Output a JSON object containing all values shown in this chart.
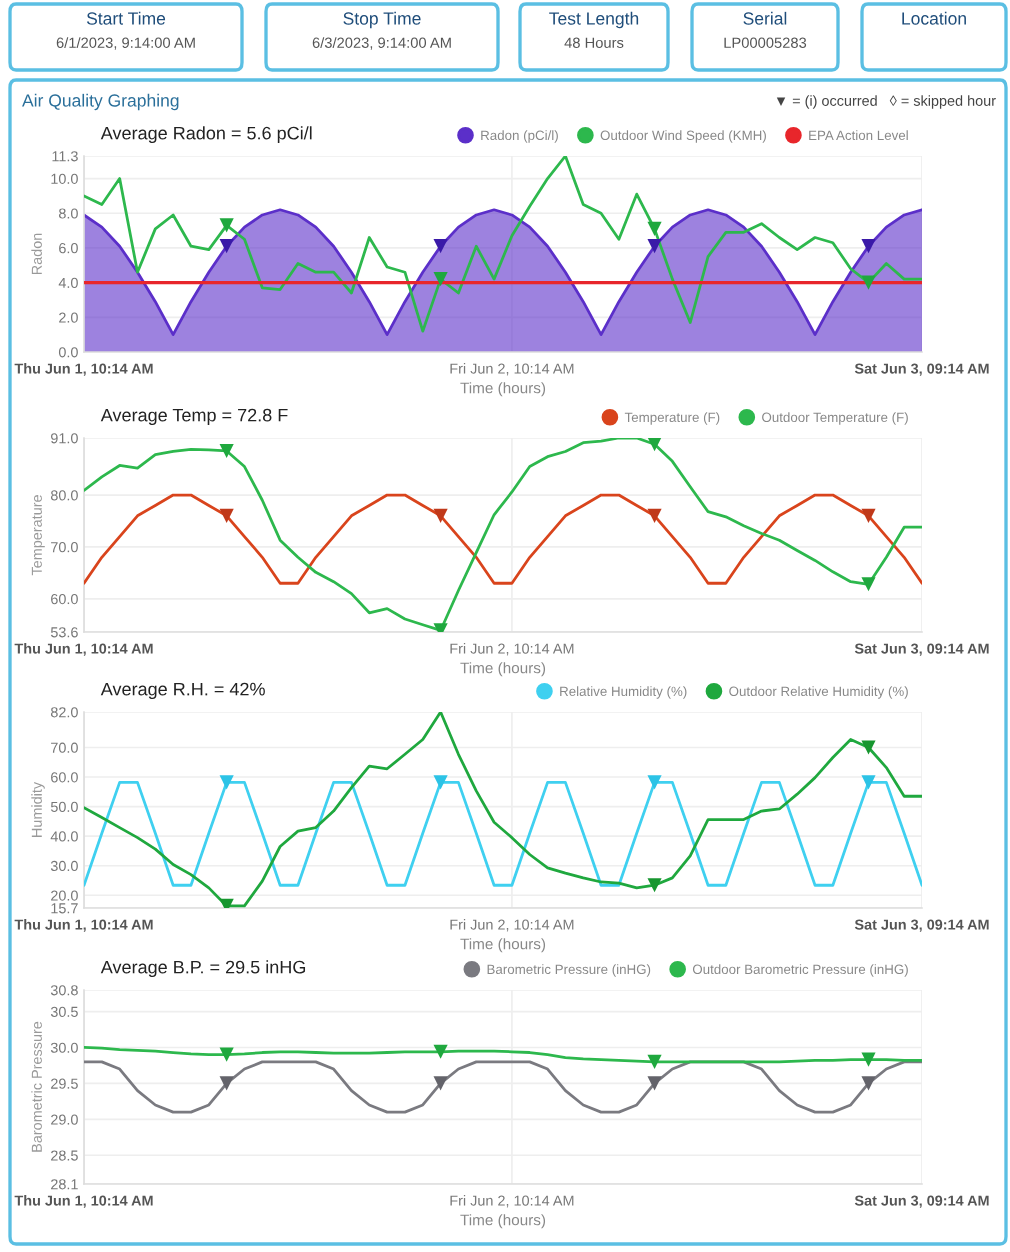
{
  "chart_data": [
    {
      "type": "other",
      "annotations": [
        "Start Time",
        "6/1/2023, 9:14:00 AM",
        "Stop Time",
        "6/3/2023, 9:14:00 AM",
        "Test Length",
        "48 Hours",
        "Serial",
        "LP00005283",
        "Location",
        "Air Quality Graphing"
      ]
    },
    {
      "type": "line",
      "title": "Average Radon = 5.6 pCi/l",
      "xlabel": "Time (hours)",
      "ylabel": "Radon",
      "annotations": [
        "▼ = (i) occurred   ◊ = skipped hour"
      ],
      "categories": [
        "Thu Jun 1, 10:14 AM",
        null,
        null,
        null,
        null,
        null,
        null,
        null,
        null,
        null,
        null,
        null,
        null,
        null,
        null,
        null,
        null,
        null,
        null,
        null,
        null,
        null,
        null,
        null,
        "Fri Jun 2, 10:14 AM",
        null,
        null,
        null,
        null,
        null,
        null,
        null,
        null,
        null,
        null,
        null,
        null,
        null,
        null,
        null,
        null,
        null,
        null,
        null,
        null,
        null,
        null,
        "Sat Jun 3, 09:14 AM"
      ],
      "ylim": [
        0,
        11.3
      ],
      "yticks": [
        {
          "value": 0,
          "label": "0.0"
        },
        {
          "value": 2,
          "label": "2.0"
        },
        {
          "value": 4,
          "label": "4.0"
        },
        {
          "value": 6,
          "label": "6.0"
        },
        {
          "value": 8,
          "label": "8.0"
        },
        {
          "value": 10,
          "label": "10.0"
        },
        11.3
      ],
      "grid": true,
      "legend": "top right",
      "ref_lines": [
        {
          "axis": "y",
          "value": 4.0,
          "label": "EPA Action Level",
          "color": "#e8262b"
        }
      ],
      "series": [
        {
          "name": "Radon (pCi/l)",
          "type": "area",
          "color": "#5b2fc9",
          "values": [
            7.9,
            7.2,
            6.1,
            4.6,
            2.9,
            1.0,
            2.9,
            4.6,
            6.1,
            7.2,
            7.9,
            8.2,
            7.9,
            7.2,
            6.1,
            4.6,
            2.9,
            1.0,
            2.9,
            4.6,
            6.1,
            7.2,
            7.9,
            8.2,
            7.9,
            7.2,
            6.1,
            4.6,
            2.9,
            1.0,
            2.9,
            4.6,
            6.1,
            7.2,
            7.9,
            8.2,
            7.9,
            7.2,
            6.1,
            4.6,
            2.9,
            1.0,
            2.9,
            4.6,
            6.1,
            7.2,
            7.9,
            8.2
          ]
        },
        {
          "name": "Outdoor Wind Speed (KMH)",
          "type": "line",
          "color": "#2db84d",
          "values": [
            9.0,
            8.5,
            10.0,
            4.6,
            7.1,
            7.9,
            6.1,
            5.9,
            7.3,
            6.5,
            3.7,
            3.6,
            5.1,
            4.6,
            4.6,
            3.4,
            6.6,
            4.9,
            4.6,
            1.2,
            4.2,
            3.4,
            6.1,
            4.2,
            6.7,
            8.4,
            10.0,
            11.3,
            8.5,
            8.0,
            6.5,
            9.1,
            7.1,
            4.2,
            1.7,
            5.5,
            6.9,
            6.9,
            7.4,
            6.6,
            5.9,
            6.6,
            6.3,
            4.8,
            4.0,
            5.1,
            4.2,
            4.2
          ]
        },
        {
          "type": "scatter",
          "marker": "triangle",
          "color": "#3a1aa8",
          "values": [
            null,
            null,
            null,
            null,
            null,
            null,
            null,
            null,
            6.1,
            null,
            null,
            null,
            null,
            null,
            null,
            null,
            null,
            null,
            null,
            null,
            6.1,
            null,
            null,
            null,
            null,
            null,
            null,
            null,
            null,
            null,
            null,
            null,
            6.1,
            null,
            null,
            null,
            null,
            null,
            null,
            null,
            null,
            null,
            null,
            null,
            6.1,
            null,
            null,
            null
          ]
        },
        {
          "type": "scatter",
          "marker": "triangle",
          "color": "#1fa83e",
          "values": [
            null,
            null,
            null,
            null,
            null,
            null,
            null,
            null,
            7.3,
            null,
            null,
            null,
            null,
            null,
            null,
            null,
            null,
            null,
            null,
            null,
            4.2,
            null,
            null,
            null,
            null,
            null,
            null,
            null,
            null,
            null,
            null,
            null,
            7.1,
            null,
            null,
            null,
            null,
            null,
            null,
            null,
            null,
            null,
            null,
            null,
            4.0,
            null,
            null,
            null
          ]
        }
      ]
    },
    {
      "type": "line",
      "title": "Average Temp = 72.8 F",
      "xlabel": "Time (hours)",
      "ylabel": "Temperature",
      "categories": [
        "Thu Jun 1, 10:14 AM",
        null,
        null,
        null,
        null,
        null,
        null,
        null,
        null,
        null,
        null,
        null,
        null,
        null,
        null,
        null,
        null,
        null,
        null,
        null,
        null,
        null,
        null,
        null,
        "Fri Jun 2, 10:14 AM",
        null,
        null,
        null,
        null,
        null,
        null,
        null,
        null,
        null,
        null,
        null,
        null,
        null,
        null,
        null,
        null,
        null,
        null,
        null,
        null,
        null,
        null,
        "Sat Jun 3, 09:14 AM"
      ],
      "ylim": [
        53.6,
        91.0
      ],
      "yticks": [
        53.6,
        {
          "value": 60,
          "label": "60.0"
        },
        {
          "value": 70,
          "label": "70.0"
        },
        {
          "value": 80,
          "label": "80.0"
        },
        {
          "value": 91,
          "label": "91.0"
        }
      ],
      "grid": true,
      "legend": "top right",
      "series": [
        {
          "name": "Temperature (F)",
          "type": "line",
          "color": "#d9441c",
          "values": [
            63.0,
            68.0,
            72.0,
            76.0,
            78.0,
            80.0,
            80.0,
            78.0,
            76.0,
            72.0,
            68.0,
            63.0,
            63.0,
            68.0,
            72.0,
            76.0,
            78.0,
            80.0,
            80.0,
            78.0,
            76.0,
            72.0,
            68.0,
            63.0,
            63.0,
            68.0,
            72.0,
            76.0,
            78.0,
            80.0,
            80.0,
            78.0,
            76.0,
            72.0,
            68.0,
            63.0,
            63.0,
            68.0,
            72.0,
            76.0,
            78.0,
            80.0,
            80.0,
            78.0,
            76.0,
            72.0,
            68.0,
            63.0
          ]
        },
        {
          "name": "Outdoor Temperature (F)",
          "type": "line",
          "color": "#2db84d",
          "values": [
            80.9,
            83.5,
            85.7,
            85.2,
            87.8,
            88.4,
            88.8,
            88.7,
            88.5,
            85.5,
            79.0,
            71.3,
            68.0,
            65.1,
            63.3,
            61.0,
            57.3,
            58.1,
            56.1,
            55.0,
            53.9,
            61.6,
            68.9,
            76.2,
            80.6,
            85.5,
            87.4,
            88.4,
            90.1,
            90.4,
            91.0,
            91.0,
            89.8,
            86.5,
            81.6,
            76.8,
            75.8,
            74.1,
            72.6,
            71.3,
            69.3,
            67.4,
            65.2,
            63.3,
            62.8,
            68.0,
            73.8,
            73.8
          ]
        },
        {
          "type": "scatter",
          "marker": "triangle",
          "color": "#c0391a",
          "values": [
            null,
            null,
            null,
            null,
            null,
            null,
            null,
            null,
            76.0,
            null,
            null,
            null,
            null,
            null,
            null,
            null,
            null,
            null,
            null,
            null,
            76.0,
            null,
            null,
            null,
            null,
            null,
            null,
            null,
            null,
            null,
            null,
            null,
            76.0,
            null,
            null,
            null,
            null,
            null,
            null,
            null,
            null,
            null,
            null,
            null,
            76.0,
            null,
            null,
            null
          ]
        },
        {
          "type": "scatter",
          "marker": "triangle",
          "color": "#1fa83e",
          "values": [
            null,
            null,
            null,
            null,
            null,
            null,
            null,
            null,
            88.5,
            null,
            null,
            null,
            null,
            null,
            null,
            null,
            null,
            null,
            null,
            null,
            53.9,
            null,
            null,
            null,
            null,
            null,
            null,
            null,
            null,
            null,
            null,
            null,
            89.8,
            null,
            null,
            null,
            null,
            null,
            null,
            null,
            null,
            null,
            null,
            null,
            62.8,
            null,
            null,
            null
          ]
        }
      ]
    },
    {
      "type": "line",
      "title": "Average R.H. = 42%",
      "xlabel": "Time (hours)",
      "ylabel": "Humidity",
      "categories": [
        "Thu Jun 1, 10:14 AM",
        null,
        null,
        null,
        null,
        null,
        null,
        null,
        null,
        null,
        null,
        null,
        null,
        null,
        null,
        null,
        null,
        null,
        null,
        null,
        null,
        null,
        null,
        null,
        "Fri Jun 2, 10:14 AM",
        null,
        null,
        null,
        null,
        null,
        null,
        null,
        null,
        null,
        null,
        null,
        null,
        null,
        null,
        null,
        null,
        null,
        null,
        null,
        null,
        null,
        null,
        "Sat Jun 3, 09:14 AM"
      ],
      "ylim": [
        15.7,
        82.0
      ],
      "yticks": [
        15.7,
        {
          "value": 20,
          "label": "20.0"
        },
        {
          "value": 30,
          "label": "30.0"
        },
        {
          "value": 40,
          "label": "40.0"
        },
        {
          "value": 50,
          "label": "50.0"
        },
        {
          "value": 60,
          "label": "60.0"
        },
        {
          "value": 70,
          "label": "70.0"
        },
        {
          "value": 82,
          "label": "82.0"
        }
      ],
      "grid": true,
      "legend": "top right",
      "series": [
        {
          "name": "Relative Humidity (%)",
          "type": "line",
          "color": "#3fd0f0",
          "values": [
            23.4,
            41,
            58.2,
            58.2,
            41,
            23.4,
            23.4,
            41,
            58.2,
            58.2,
            41,
            23.4,
            23.4,
            41,
            58.2,
            58.2,
            41,
            23.4,
            23.4,
            41,
            58.2,
            58.2,
            41,
            23.4,
            23.4,
            41,
            58.2,
            58.2,
            41,
            23.4,
            23.4,
            41,
            58.2,
            58.2,
            41,
            23.4,
            23.4,
            41,
            58.2,
            58.2,
            41,
            23.4,
            23.4,
            41,
            58.2,
            58.2,
            41,
            23.4
          ]
        },
        {
          "name": "Outdoor Relative Humidity (%)",
          "type": "line",
          "color": "#1fa83e",
          "values": [
            49.6,
            46.3,
            42.9,
            39.5,
            35.6,
            30.4,
            27.0,
            22.5,
            16.4,
            16.4,
            24.8,
            36.5,
            41.7,
            42.9,
            48.5,
            56.4,
            63.7,
            62.8,
            67.7,
            72.7,
            82.0,
            67.7,
            55.3,
            44.7,
            39.5,
            33.8,
            29.3,
            27.5,
            25.9,
            24.5,
            24.1,
            22.5,
            23.4,
            25.9,
            33.3,
            45.6,
            45.6,
            45.6,
            48.5,
            49.2,
            54.2,
            59.8,
            66.6,
            72.7,
            70.0,
            63.2,
            53.5,
            53.5
          ]
        },
        {
          "type": "scatter",
          "marker": "triangle",
          "color": "#2cc3e6",
          "values": [
            null,
            null,
            null,
            null,
            null,
            null,
            null,
            null,
            58.2,
            null,
            null,
            null,
            null,
            null,
            null,
            null,
            null,
            null,
            null,
            null,
            58.2,
            null,
            null,
            null,
            null,
            null,
            null,
            null,
            null,
            null,
            null,
            null,
            58.2,
            null,
            null,
            null,
            null,
            null,
            null,
            null,
            null,
            null,
            null,
            null,
            58.2,
            null,
            null,
            null
          ]
        },
        {
          "type": "scatter",
          "marker": "triangle",
          "color": "#17962f",
          "values": [
            null,
            null,
            null,
            null,
            null,
            null,
            null,
            null,
            16.4,
            null,
            null,
            null,
            null,
            null,
            null,
            null,
            null,
            null,
            null,
            null,
            null,
            null,
            null,
            null,
            null,
            null,
            null,
            null,
            null,
            null,
            null,
            null,
            23.4,
            null,
            null,
            null,
            null,
            null,
            null,
            null,
            null,
            null,
            null,
            null,
            70.0,
            null,
            null,
            null
          ]
        }
      ]
    },
    {
      "type": "line",
      "title": "Average B.P. = 29.5 inHG",
      "xlabel": "Time (hours)",
      "ylabel": "Barometric Pressure",
      "categories": [
        "Thu Jun 1, 10:14 AM",
        null,
        null,
        null,
        null,
        null,
        null,
        null,
        null,
        null,
        null,
        null,
        null,
        null,
        null,
        null,
        null,
        null,
        null,
        null,
        null,
        null,
        null,
        null,
        "Fri Jun 2, 10:14 AM",
        null,
        null,
        null,
        null,
        null,
        null,
        null,
        null,
        null,
        null,
        null,
        null,
        null,
        null,
        null,
        null,
        null,
        null,
        null,
        null,
        null,
        null,
        "Sat Jun 3, 09:14 AM"
      ],
      "ylim": [
        28.1,
        30.8
      ],
      "yticks": [
        28.1,
        28.5,
        {
          "value": 29,
          "label": "29.0"
        },
        29.5,
        {
          "value": 30,
          "label": "30.0"
        },
        30.5,
        30.8
      ],
      "grid": true,
      "legend": "top right",
      "series": [
        {
          "name": "Barometric Pressure (inHG)",
          "type": "line",
          "color": "#7a7a80",
          "values": [
            29.8,
            29.8,
            29.7,
            29.4,
            29.2,
            29.1,
            29.1,
            29.2,
            29.5,
            29.7,
            29.8,
            29.8,
            29.8,
            29.8,
            29.7,
            29.4,
            29.2,
            29.1,
            29.1,
            29.2,
            29.5,
            29.7,
            29.8,
            29.8,
            29.8,
            29.8,
            29.7,
            29.4,
            29.2,
            29.1,
            29.1,
            29.2,
            29.5,
            29.7,
            29.8,
            29.8,
            29.8,
            29.8,
            29.7,
            29.4,
            29.2,
            29.1,
            29.1,
            29.2,
            29.5,
            29.7,
            29.8,
            29.8
          ]
        },
        {
          "name": "Outdoor Barometric Pressure (inHG)",
          "type": "line",
          "color": "#2db84d",
          "values": [
            30.0,
            29.99,
            29.97,
            29.96,
            29.95,
            29.93,
            29.91,
            29.9,
            29.9,
            29.91,
            29.93,
            29.94,
            29.94,
            29.93,
            29.92,
            29.92,
            29.92,
            29.93,
            29.94,
            29.94,
            29.94,
            29.95,
            29.95,
            29.95,
            29.94,
            29.93,
            29.9,
            29.86,
            29.84,
            29.83,
            29.82,
            29.81,
            29.8,
            29.8,
            29.8,
            29.8,
            29.8,
            29.8,
            29.8,
            29.8,
            29.81,
            29.82,
            29.82,
            29.83,
            29.83,
            29.83,
            29.82,
            29.82
          ]
        },
        {
          "type": "scatter",
          "marker": "triangle",
          "color": "#63636a",
          "values": [
            null,
            null,
            null,
            null,
            null,
            null,
            null,
            null,
            29.5,
            null,
            null,
            null,
            null,
            null,
            null,
            null,
            null,
            null,
            null,
            null,
            29.5,
            null,
            null,
            null,
            null,
            null,
            null,
            null,
            null,
            null,
            null,
            null,
            29.5,
            null,
            null,
            null,
            null,
            null,
            null,
            null,
            null,
            null,
            null,
            null,
            29.5,
            null,
            null,
            null
          ]
        },
        {
          "type": "scatter",
          "marker": "triangle",
          "color": "#1fa83e",
          "values": [
            null,
            null,
            null,
            null,
            null,
            null,
            null,
            null,
            29.9,
            null,
            null,
            null,
            null,
            null,
            null,
            null,
            null,
            null,
            null,
            null,
            29.94,
            null,
            null,
            null,
            null,
            null,
            null,
            null,
            null,
            null,
            null,
            null,
            29.8,
            null,
            null,
            null,
            null,
            null,
            null,
            null,
            null,
            null,
            null,
            null,
            29.83,
            null,
            null,
            null
          ]
        }
      ]
    }
  ]
}
